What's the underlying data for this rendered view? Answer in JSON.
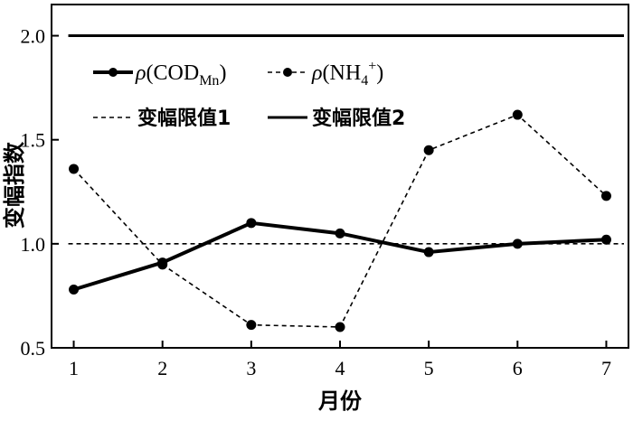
{
  "chart_data": {
    "type": "line",
    "title": "",
    "xlabel": "月份",
    "ylabel": "变幅指数",
    "categories": [
      "1",
      "2",
      "3",
      "4",
      "5",
      "6",
      "7"
    ],
    "xlim": [
      0.75,
      7.25
    ],
    "ylim": [
      0.5,
      2.15
    ],
    "yticks": [
      0.5,
      1.0,
      1.5,
      2.0
    ],
    "ytick_labels": [
      "0.5",
      "1.0",
      "1.5",
      "2.0"
    ],
    "grid": false,
    "legend_position": "top-left",
    "series": [
      {
        "legend": {
          "rho": "ρ",
          "open": "(COD",
          "sub": "Mn",
          "close": ")"
        },
        "values": [
          0.78,
          0.91,
          1.1,
          1.05,
          0.96,
          1.0,
          1.02
        ],
        "style": "solid-thick",
        "marker": "circle",
        "color": "#000000"
      },
      {
        "legend": {
          "rho": "ρ",
          "open": "(NH",
          "sub": "4",
          "sup": "+",
          "close": ")"
        },
        "values": [
          1.36,
          0.9,
          0.61,
          0.6,
          1.45,
          1.62,
          1.23
        ],
        "style": "dashed",
        "marker": "circle",
        "color": "#000000"
      }
    ],
    "reference_lines": [
      {
        "name": "变幅限值1",
        "y": 1.0,
        "style": "dashed"
      },
      {
        "name": "变幅限值2",
        "y": 2.0,
        "style": "solid"
      }
    ]
  }
}
